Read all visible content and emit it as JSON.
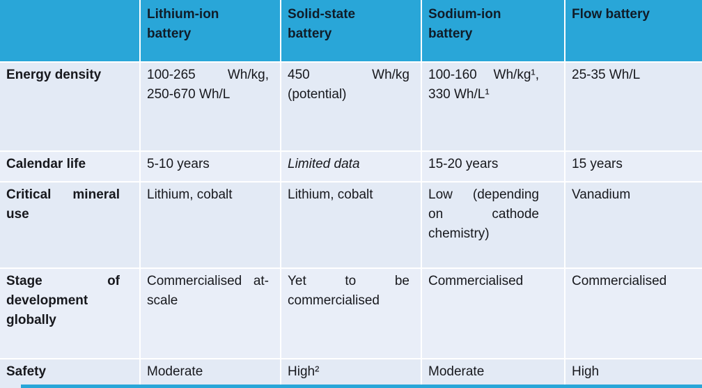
{
  "colors": {
    "header_bg": "#29a6d8",
    "header_text": "#101c28",
    "body_text": "#17181d",
    "row_band_a": "#e3eaf5",
    "row_band_b": "#e9eef8"
  },
  "table": {
    "header": [
      "",
      "Lithium-ion battery",
      "Solid-state battery",
      "Sodium-ion battery",
      "Flow battery"
    ],
    "rows": [
      {
        "label": "Energy density",
        "cells": [
          "100-265 Wh/kg, 250-670 Wh/L",
          "450 Wh/kg (potential)",
          "100-160 Wh/kg¹, 330 Wh/L¹",
          "25-35 Wh/L"
        ]
      },
      {
        "label": "Calendar life",
        "cells": [
          "5-10 years",
          "Limited data",
          "15-20 years",
          "15 years"
        ]
      },
      {
        "label": "Critical mineral use",
        "cells": [
          "Lithium, cobalt",
          "Lithium, cobalt",
          "Low (depending on cathode chemistry)",
          "Vanadium"
        ]
      },
      {
        "label": "Stage of development globally",
        "cells": [
          "Commercialised at-scale",
          "Yet to be commercialised",
          "Commercialised",
          "Commercialised"
        ]
      },
      {
        "label": "Safety",
        "cells": [
          "Moderate",
          "High²",
          "Moderate",
          "High"
        ]
      }
    ],
    "footnote_markers": [
      "1",
      "2"
    ]
  }
}
